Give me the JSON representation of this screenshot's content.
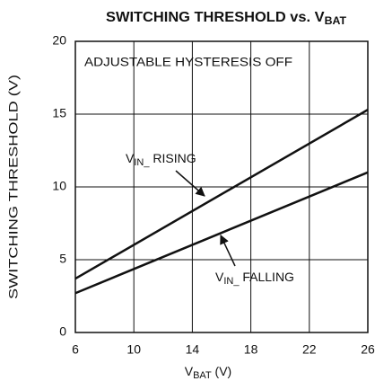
{
  "chart_data": {
    "type": "line",
    "title_parts": [
      "SWITCHING THRESHOLD vs. V",
      "BAT"
    ],
    "x_label_parts": [
      "V",
      "BAT",
      " (V)"
    ],
    "y_label": "SWITCHING THRESHOLD (V)",
    "x": [
      6,
      26
    ],
    "series": [
      {
        "color": "#111111",
        "values": [
          3.7,
          15.3
        ]
      },
      {
        "color": "#111111",
        "values": [
          2.7,
          11.0
        ]
      }
    ],
    "annotations": [
      {
        "text": "ADJUSTABLE HYSTERESIS OFF"
      },
      {
        "parts": [
          "V",
          "IN_",
          " RISING"
        ]
      },
      {
        "parts": [
          "V",
          "IN_",
          " FALLING"
        ]
      }
    ],
    "xlim": [
      6,
      26
    ],
    "xticks": [
      6,
      10,
      14,
      18,
      22,
      26
    ],
    "ylim": [
      0,
      20
    ],
    "yticks": [
      0,
      5,
      10,
      15,
      20
    ],
    "grid": true
  }
}
